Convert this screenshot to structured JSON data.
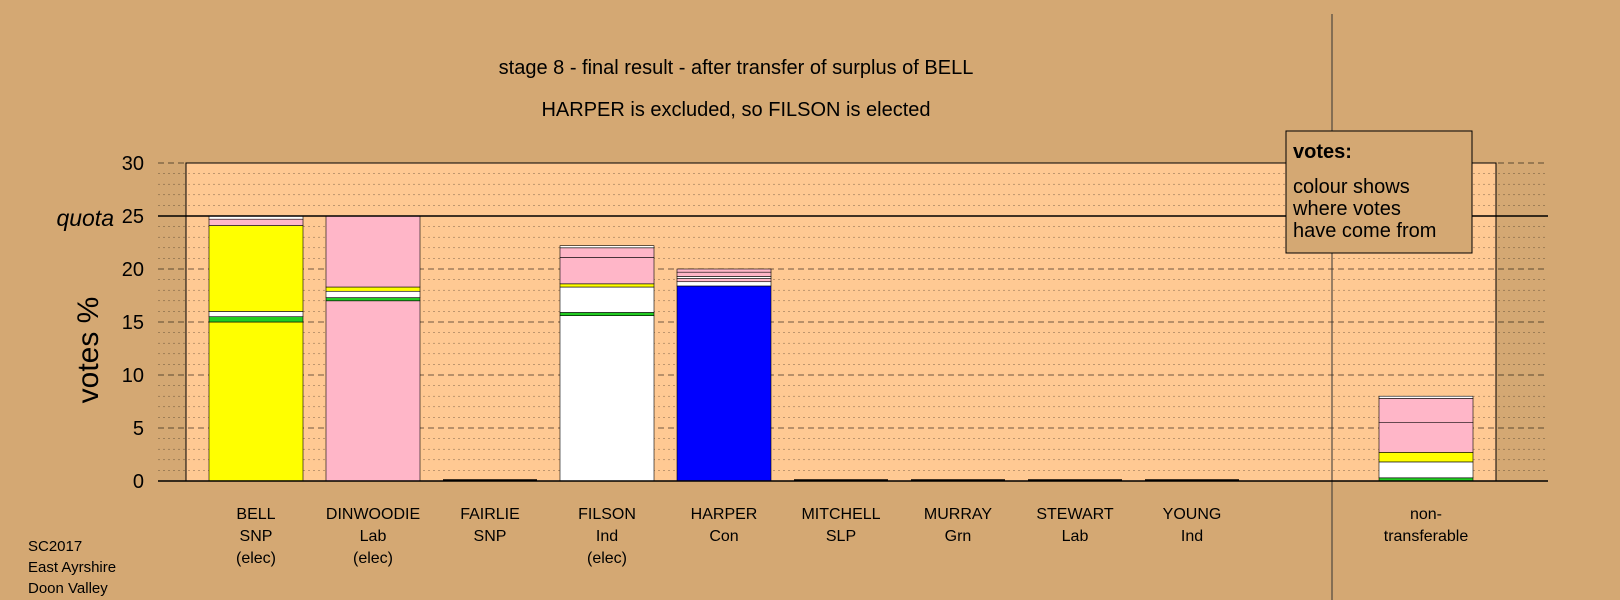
{
  "chart_data": {
    "type": "bar",
    "title": "stage 8 - final result - after transfer of surplus of BELL",
    "subtitle": "HARPER is excluded, so FILSON is elected",
    "ylabel": "votes %",
    "ylim": [
      0,
      30
    ],
    "yticks": [
      0,
      5,
      10,
      15,
      20,
      25,
      30
    ],
    "quota": {
      "value": 25,
      "label": "quota"
    },
    "grid": true,
    "legend": {
      "position": "top-right",
      "title": "votes:",
      "text": [
        "colour shows",
        "where votes",
        "have come from"
      ]
    },
    "candidates": [
      {
        "name": "BELL",
        "party": "SNP",
        "status": "(elec)",
        "segments": [
          {
            "value": 15.0,
            "color": "#ffff00"
          },
          {
            "value": 0.5,
            "color": "#22cc22"
          },
          {
            "value": 0.5,
            "color": "#ffffff"
          },
          {
            "value": 8.1,
            "color": "#ffff00"
          },
          {
            "value": 0.6,
            "color": "#ffb6c8"
          },
          {
            "value": 0.3,
            "color": "#ffffff"
          }
        ]
      },
      {
        "name": "DINWOODIE",
        "party": "Lab",
        "status": "(elec)",
        "segments": [
          {
            "value": 17.0,
            "color": "#ffb6c8"
          },
          {
            "value": 0.3,
            "color": "#22cc22"
          },
          {
            "value": 0.6,
            "color": "#ffffff"
          },
          {
            "value": 0.4,
            "color": "#ffff00"
          },
          {
            "value": 6.7,
            "color": "#ffb6c8"
          }
        ]
      },
      {
        "name": "FAIRLIE",
        "party": "SNP",
        "status": "",
        "segments": []
      },
      {
        "name": "FILSON",
        "party": "Ind",
        "status": "(elec)",
        "segments": [
          {
            "value": 15.6,
            "color": "#ffffff"
          },
          {
            "value": 0.3,
            "color": "#22cc22"
          },
          {
            "value": 2.4,
            "color": "#ffffff"
          },
          {
            "value": 0.3,
            "color": "#ffff00"
          },
          {
            "value": 2.5,
            "color": "#ffb6c8"
          },
          {
            "value": 0.9,
            "color": "#ffb6c8"
          },
          {
            "value": 0.2,
            "color": "#ffffff"
          }
        ]
      },
      {
        "name": "HARPER",
        "party": "Con",
        "status": "",
        "segments": [
          {
            "value": 18.4,
            "color": "#0000ff"
          },
          {
            "value": 0.4,
            "color": "#ffffff"
          },
          {
            "value": 0.3,
            "color": "#ffb6c8"
          },
          {
            "value": 0.2,
            "color": "#ffffff"
          },
          {
            "value": 0.4,
            "color": "#ffb6c8"
          },
          {
            "value": 0.3,
            "color": "#ffb6c8"
          }
        ]
      },
      {
        "name": "MITCHELL",
        "party": "SLP",
        "status": "",
        "segments": []
      },
      {
        "name": "MURRAY",
        "party": "Grn",
        "status": "",
        "segments": []
      },
      {
        "name": "STEWART",
        "party": "Lab",
        "status": "",
        "segments": []
      },
      {
        "name": "YOUNG",
        "party": "Ind",
        "status": "",
        "segments": []
      }
    ],
    "non_transferable": {
      "label": [
        "non-",
        "transferable"
      ],
      "segments": [
        {
          "value": 0.3,
          "color": "#22cc22"
        },
        {
          "value": 1.5,
          "color": "#ffffff"
        },
        {
          "value": 0.9,
          "color": "#ffff00"
        },
        {
          "value": 2.8,
          "color": "#ffb6c8"
        },
        {
          "value": 2.3,
          "color": "#ffb6c8"
        },
        {
          "value": 0.2,
          "color": "#ffffff"
        }
      ]
    }
  },
  "footer": {
    "line1": "SC2017",
    "line2": "East Ayrshire",
    "line3": "Doon Valley"
  }
}
